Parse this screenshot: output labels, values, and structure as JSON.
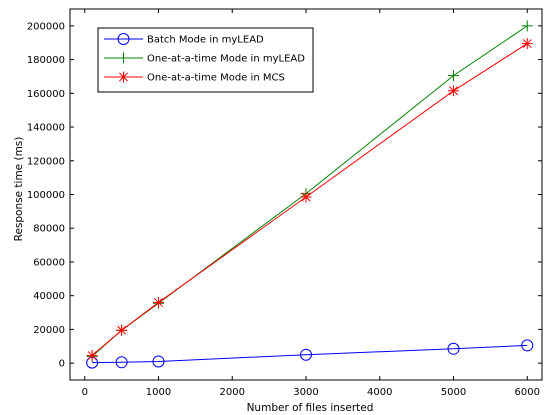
{
  "chart_data": {
    "type": "line",
    "xlabel": "Number of files inserted",
    "ylabel": "Response time (ms)",
    "xlim": [
      -200,
      6200
    ],
    "ylim": [
      -10000,
      210000
    ],
    "xticks": [
      0,
      1000,
      2000,
      3000,
      4000,
      5000,
      6000
    ],
    "yticks": [
      0,
      20000,
      40000,
      60000,
      80000,
      100000,
      120000,
      140000,
      160000,
      180000,
      200000
    ],
    "grid": false,
    "legend_position": "top-left",
    "series": [
      {
        "name": "Batch Mode in myLEAD",
        "color": "#0000ff",
        "marker": "circle",
        "x": [
          100,
          500,
          1000,
          3000,
          5000,
          6000
        ],
        "y": [
          300,
          500,
          1000,
          5000,
          8500,
          10500
        ]
      },
      {
        "name": "One-at-a-time Mode in myLEAD",
        "color": "#008000",
        "marker": "plus",
        "x": [
          100,
          500,
          1000,
          3000,
          5000,
          6000
        ],
        "y": [
          4000,
          19500,
          35500,
          100500,
          170500,
          200000
        ]
      },
      {
        "name": "One-at-a-time Mode in MCS",
        "color": "#ff0000",
        "marker": "star",
        "x": [
          100,
          500,
          1000,
          3000,
          5000,
          6000
        ],
        "y": [
          4500,
          19500,
          36000,
          98500,
          161500,
          189500
        ]
      }
    ]
  }
}
